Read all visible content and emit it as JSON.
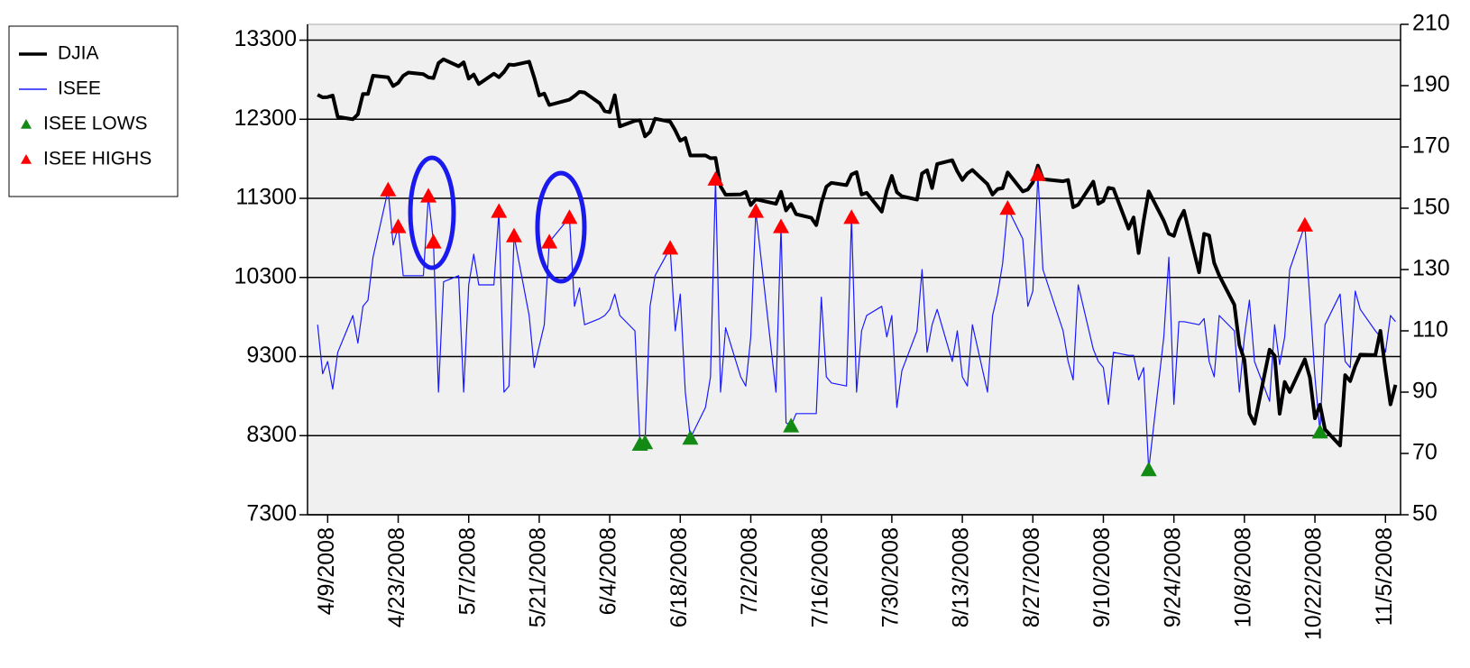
{
  "chart_data": {
    "type": "line",
    "x": [
      "2008-04-07",
      "2008-04-08",
      "2008-04-09",
      "2008-04-10",
      "2008-04-11",
      "2008-04-14",
      "2008-04-15",
      "2008-04-16",
      "2008-04-17",
      "2008-04-18",
      "2008-04-21",
      "2008-04-22",
      "2008-04-23",
      "2008-04-24",
      "2008-04-25",
      "2008-04-28",
      "2008-04-29",
      "2008-04-30",
      "2008-05-01",
      "2008-05-02",
      "2008-05-05",
      "2008-05-06",
      "2008-05-07",
      "2008-05-08",
      "2008-05-09",
      "2008-05-12",
      "2008-05-13",
      "2008-05-14",
      "2008-05-15",
      "2008-05-16",
      "2008-05-19",
      "2008-05-20",
      "2008-05-21",
      "2008-05-22",
      "2008-05-23",
      "2008-05-27",
      "2008-05-28",
      "2008-05-29",
      "2008-05-30",
      "2008-06-02",
      "2008-06-03",
      "2008-06-04",
      "2008-06-05",
      "2008-06-06",
      "2008-06-09",
      "2008-06-10",
      "2008-06-11",
      "2008-06-12",
      "2008-06-13",
      "2008-06-16",
      "2008-06-17",
      "2008-06-18",
      "2008-06-19",
      "2008-06-20",
      "2008-06-23",
      "2008-06-24",
      "2008-06-25",
      "2008-06-26",
      "2008-06-27",
      "2008-06-30",
      "2008-07-01",
      "2008-07-02",
      "2008-07-03",
      "2008-07-07",
      "2008-07-08",
      "2008-07-09",
      "2008-07-10",
      "2008-07-11",
      "2008-07-14",
      "2008-07-15",
      "2008-07-16",
      "2008-07-17",
      "2008-07-18",
      "2008-07-21",
      "2008-07-22",
      "2008-07-23",
      "2008-07-24",
      "2008-07-25",
      "2008-07-28",
      "2008-07-29",
      "2008-07-30",
      "2008-07-31",
      "2008-08-01",
      "2008-08-04",
      "2008-08-05",
      "2008-08-06",
      "2008-08-07",
      "2008-08-08",
      "2008-08-11",
      "2008-08-12",
      "2008-08-13",
      "2008-08-14",
      "2008-08-15",
      "2008-08-18",
      "2008-08-19",
      "2008-08-20",
      "2008-08-21",
      "2008-08-22",
      "2008-08-25",
      "2008-08-26",
      "2008-08-27",
      "2008-08-28",
      "2008-08-29",
      "2008-09-02",
      "2008-09-03",
      "2008-09-04",
      "2008-09-05",
      "2008-09-08",
      "2008-09-09",
      "2008-09-10",
      "2008-09-11",
      "2008-09-12",
      "2008-09-15",
      "2008-09-16",
      "2008-09-17",
      "2008-09-18",
      "2008-09-19",
      "2008-09-22",
      "2008-09-23",
      "2008-09-24",
      "2008-09-25",
      "2008-09-26",
      "2008-09-29",
      "2008-09-30",
      "2008-10-01",
      "2008-10-02",
      "2008-10-03",
      "2008-10-06",
      "2008-10-07",
      "2008-10-08",
      "2008-10-09",
      "2008-10-10",
      "2008-10-13",
      "2008-10-14",
      "2008-10-15",
      "2008-10-16",
      "2008-10-17",
      "2008-10-20",
      "2008-10-21",
      "2008-10-22",
      "2008-10-23",
      "2008-10-24",
      "2008-10-27",
      "2008-10-28",
      "2008-10-29",
      "2008-10-30",
      "2008-10-31",
      "2008-11-03",
      "2008-11-04",
      "2008-11-05",
      "2008-11-06",
      "2008-11-07"
    ],
    "series": [
      {
        "name": "DJIA",
        "type": "line",
        "color": "#000000",
        "width": 4,
        "values": [
          12610,
          12577,
          12580,
          12600,
          12330,
          12300,
          12362,
          12620,
          12620,
          12850,
          12830,
          12720,
          12760,
          12850,
          12890,
          12870,
          12830,
          12820,
          13010,
          13058,
          12970,
          13020,
          12814,
          12866,
          12745,
          12876,
          12832,
          12898,
          12992,
          12986,
          13028,
          12828,
          12601,
          12625,
          12480,
          12548,
          12594,
          12647,
          12638,
          12503,
          12402,
          12390,
          12604,
          12210,
          12280,
          12289,
          12084,
          12141,
          12307,
          12269,
          12160,
          12029,
          12063,
          11842,
          11843,
          11807,
          11811,
          11453,
          11346,
          11350,
          11382,
          11215,
          11288,
          11231,
          11384,
          11147,
          11229,
          11100,
          11055,
          10962,
          11239,
          11446,
          11496,
          11467,
          11602,
          11632,
          11349,
          11370,
          11132,
          11398,
          11584,
          11378,
          11326,
          11284,
          11615,
          11656,
          11431,
          11734,
          11782,
          11642,
          11532,
          11615,
          11659,
          11479,
          11348,
          11417,
          11430,
          11628,
          11387,
          11413,
          11502,
          11715,
          11543,
          11516,
          11532,
          11188,
          11220,
          11511,
          11231,
          11268,
          11433,
          11421,
          10917,
          11059,
          10609,
          11019,
          11388,
          11016,
          10854,
          10825,
          11022,
          11143,
          10365,
          10851,
          10831,
          10482,
          10325,
          9955,
          9447,
          9258,
          8579,
          8451,
          9387,
          9310,
          8577,
          8979,
          8852,
          9265,
          9034,
          8519,
          8691,
          8378,
          8175,
          9065,
          8990,
          9180,
          9325,
          9319,
          9625,
          9139,
          8695,
          8943
        ]
      },
      {
        "name": "ISEE",
        "type": "line",
        "axis": "y2",
        "color": "#1a1aff",
        "width": 1.2,
        "values": [
          112,
          96,
          100,
          91,
          103,
          115,
          106,
          118,
          120,
          134,
          156,
          138,
          144,
          128,
          128,
          128,
          154,
          139,
          90,
          126,
          128,
          90,
          125,
          135,
          125,
          125,
          149,
          90,
          92,
          141,
          115,
          98,
          105,
          112,
          139,
          147,
          118,
          124,
          112,
          114,
          115,
          117,
          122,
          115,
          110,
          73,
          73.5,
          118,
          128,
          137,
          110,
          122,
          90,
          75,
          85,
          95,
          159.5,
          90,
          111,
          95,
          92,
          108,
          149,
          90,
          144,
          80,
          79,
          83,
          83,
          83,
          121,
          95,
          93,
          92,
          147,
          90,
          110,
          115,
          118,
          108,
          115,
          85,
          97,
          110,
          130,
          103,
          112,
          117,
          100,
          110,
          95,
          92,
          112,
          90,
          115,
          122,
          132,
          150,
          140,
          118,
          123,
          161,
          130,
          110,
          100,
          94,
          125,
          104,
          100,
          98,
          86,
          103,
          102,
          102,
          94,
          98,
          64.7,
          108,
          134,
          86,
          113,
          113,
          112,
          114,
          100,
          95,
          115,
          110,
          90,
          108,
          120,
          100,
          87,
          112,
          99,
          108,
          130,
          144.5,
          120,
          95,
          77,
          112,
          122,
          100,
          98,
          123,
          117,
          110,
          108,
          103,
          115,
          113
        ]
      },
      {
        "name": "ISEE LOWS",
        "type": "scatter",
        "axis": "y2",
        "color": "#138a13",
        "x": [
          "2008-06-10",
          "2008-06-11",
          "2008-06-20",
          "2008-07-10",
          "2008-09-19",
          "2008-10-23"
        ],
        "values": [
          73,
          73.5,
          75,
          79,
          64.7,
          77
        ]
      },
      {
        "name": "ISEE HIGHS",
        "type": "scatter",
        "axis": "y2",
        "color": "#ff0000",
        "x": [
          "2008-04-21",
          "2008-04-23",
          "2008-04-29",
          "2008-04-30",
          "2008-05-13",
          "2008-05-16",
          "2008-05-23",
          "2008-05-27",
          "2008-06-16",
          "2008-06-25",
          "2008-07-03",
          "2008-07-08",
          "2008-07-22",
          "2008-08-22",
          "2008-08-28",
          "2008-10-20"
        ],
        "values": [
          156,
          144,
          154,
          139,
          149,
          141,
          139,
          147,
          137,
          159.5,
          149,
          144,
          147,
          150,
          161,
          144.5
        ]
      }
    ],
    "xlim": [
      "2008-04-05",
      "2008-11-08"
    ],
    "xticks": [
      {
        "value": "2008-04-09",
        "label": "4/9/2008"
      },
      {
        "value": "2008-04-23",
        "label": "4/23/2008"
      },
      {
        "value": "2008-05-07",
        "label": "5/7/2008"
      },
      {
        "value": "2008-05-21",
        "label": "5/21/2008"
      },
      {
        "value": "2008-06-04",
        "label": "6/4/2008"
      },
      {
        "value": "2008-06-18",
        "label": "6/18/2008"
      },
      {
        "value": "2008-07-02",
        "label": "7/2/2008"
      },
      {
        "value": "2008-07-16",
        "label": "7/16/2008"
      },
      {
        "value": "2008-07-30",
        "label": "7/30/2008"
      },
      {
        "value": "2008-08-13",
        "label": "8/13/2008"
      },
      {
        "value": "2008-08-27",
        "label": "8/27/2008"
      },
      {
        "value": "2008-09-10",
        "label": "9/10/2008"
      },
      {
        "value": "2008-09-24",
        "label": "9/24/2008"
      },
      {
        "value": "2008-10-08",
        "label": "10/8/2008"
      },
      {
        "value": "2008-10-22",
        "label": "10/22/2008"
      },
      {
        "value": "2008-11-05",
        "label": "11/5/2008"
      }
    ],
    "ylim": [
      7300,
      13500
    ],
    "yticks": [
      7300,
      8300,
      9300,
      10300,
      11300,
      12300,
      13300
    ],
    "y2lim": [
      50,
      210
    ],
    "y2ticks": [
      50,
      70,
      90,
      110,
      130,
      150,
      170,
      190,
      210
    ],
    "grid": true,
    "legend": "left"
  }
}
